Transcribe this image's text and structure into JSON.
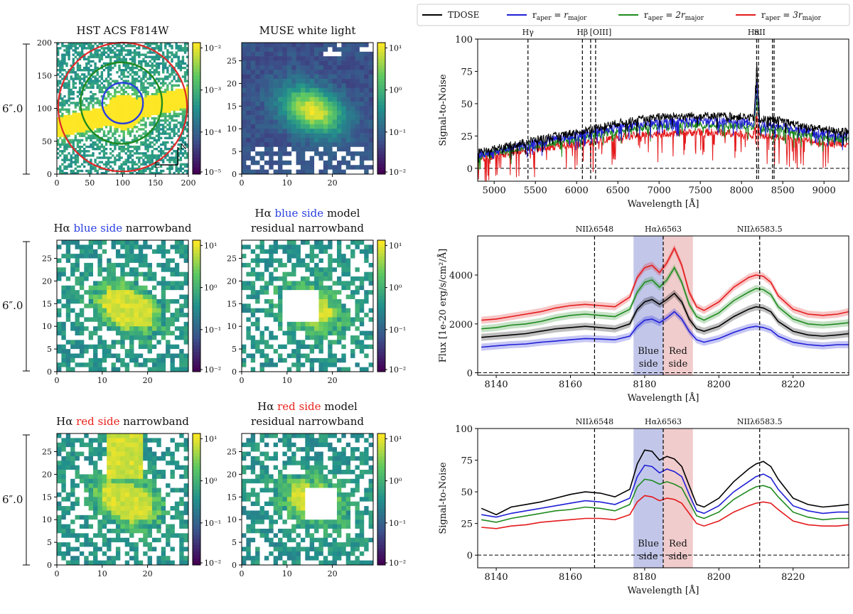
{
  "figure": {
    "scale_label": "6″.0",
    "compass_north": "N",
    "compass_east": "E"
  },
  "legend": {
    "entries": [
      {
        "name": "TDOSE",
        "color": "#000000"
      },
      {
        "name": "r_aper = r_major",
        "label_main": "r",
        "label_sub": "aper",
        "label_rest": " = r",
        "label_rest_sub": "major",
        "color": "#1f1fd6"
      },
      {
        "name": "r_aper = 2r_major",
        "label_main": "r",
        "label_sub": "aper",
        "label_rest": " = 2r",
        "label_rest_sub": "major",
        "color": "#1f8a1f"
      },
      {
        "name": "r_aper = 3r_major",
        "label_main": "r",
        "label_sub": "aper",
        "label_rest": " = 3r",
        "label_rest_sub": "major",
        "color": "#e41a1c"
      }
    ]
  },
  "colors": {
    "viridis": [
      "#440154",
      "#3b528b",
      "#21918c",
      "#5ec962",
      "#fde725"
    ],
    "blue_text": "#2a3fe0",
    "red_text": "#e8251c",
    "blue_band": "#b7bde6",
    "red_band": "#efc3c3"
  },
  "panels": [
    {
      "id": "hst",
      "title": "HST ACS F814W",
      "xticks": [
        "0",
        "50",
        "100",
        "150",
        "200"
      ],
      "yticks": [
        "0",
        "50",
        "100",
        "150",
        "200"
      ],
      "cbar_ticks": [
        "10⁻²",
        "10⁻³",
        "10⁻⁴",
        "10⁻⁵"
      ]
    },
    {
      "id": "muse",
      "title": "MUSE white light",
      "xticks": [
        "0",
        "10",
        "20"
      ],
      "yticks": [
        "0",
        "5",
        "10",
        "15",
        "20",
        "25"
      ],
      "cbar_ticks": [
        "10¹",
        "10⁰",
        "10⁻¹",
        "10⁻²"
      ]
    },
    {
      "id": "blue_nb",
      "title_prefix": "Hα ",
      "title_colored": "blue side",
      "title_suffix": " narrowband",
      "title_color": "blue",
      "xticks": [
        "0",
        "10",
        "20"
      ],
      "yticks": [
        "0",
        "5",
        "10",
        "15",
        "20",
        "25"
      ],
      "cbar_ticks": [
        "10¹",
        "10⁰",
        "10⁻¹",
        "10⁻²"
      ]
    },
    {
      "id": "blue_res",
      "title_prefix": "Hα ",
      "title_colored": "blue side",
      "title_suffix": " model",
      "title_line2": "residual narrowband",
      "title_color": "blue",
      "xticks": [
        "0",
        "10",
        "20"
      ],
      "yticks": [
        "0",
        "5",
        "10",
        "15",
        "20",
        "25"
      ],
      "cbar_ticks": [
        "10¹",
        "10⁰",
        "10⁻¹",
        "10⁻²"
      ]
    },
    {
      "id": "red_nb",
      "title_prefix": "Hα ",
      "title_colored": "red side",
      "title_suffix": " narrowband",
      "title_color": "red",
      "xticks": [
        "0",
        "10",
        "20"
      ],
      "yticks": [
        "0",
        "5",
        "10",
        "15",
        "20",
        "25"
      ],
      "cbar_ticks": [
        "10¹",
        "10⁰",
        "10⁻¹",
        "10⁻²"
      ]
    },
    {
      "id": "red_res",
      "title_prefix": "Hα ",
      "title_colored": "red side",
      "title_suffix": " model",
      "title_line2": "residual narrowband",
      "title_color": "red",
      "xticks": [
        "0",
        "10",
        "20"
      ],
      "yticks": [
        "0",
        "5",
        "10",
        "15",
        "20",
        "25"
      ],
      "cbar_ticks": [
        "10¹",
        "10⁰",
        "10⁻¹",
        "10⁻²"
      ]
    }
  ],
  "chart_data": [
    {
      "type": "line",
      "id": "sn_full",
      "title": "",
      "xlabel": "Wavelength [Å]",
      "ylabel": "Signal-to-Noise",
      "xlim": [
        4800,
        9300
      ],
      "ylim": [
        -10,
        100
      ],
      "xticks": [
        5000,
        5500,
        6000,
        6500,
        7000,
        7500,
        8000,
        8500,
        9000
      ],
      "yticks": [
        0,
        25,
        50,
        75,
        100
      ],
      "lines": [
        {
          "label": "Hγ",
          "x": 5410
        },
        {
          "label": "Hβ",
          "x": 6070
        },
        {
          "label": "[OIII]",
          "x": 6170
        },
        {
          "label": "",
          "x": 6230
        },
        {
          "label": "Hα",
          "x": 8183
        },
        {
          "label": "",
          "x": 8205
        },
        {
          "label": "SII",
          "x": 8375
        },
        {
          "label": "",
          "x": 8395
        }
      ],
      "series": [
        {
          "name": "TDOSE",
          "color": "#000000",
          "x": [
            4800,
            5000,
            5500,
            6000,
            6500,
            7000,
            7500,
            8000,
            8150,
            8185,
            8220,
            8500,
            8700,
            9000,
            9300
          ],
          "values": [
            12,
            15,
            22,
            28,
            35,
            40,
            41,
            40,
            39,
            80,
            38,
            37,
            33,
            30,
            28
          ]
        },
        {
          "name": "r_aper = r_major",
          "color": "#1f1fd6",
          "x": [
            4800,
            5000,
            5500,
            6000,
            6500,
            7000,
            7500,
            8000,
            8150,
            8185,
            8220,
            8500,
            8700,
            9000,
            9300
          ],
          "values": [
            10,
            13,
            20,
            26,
            32,
            36,
            37,
            36,
            35,
            65,
            34,
            33,
            30,
            27,
            25
          ]
        },
        {
          "name": "r_aper = 2r_major",
          "color": "#1f8a1f",
          "x": [
            4800,
            5000,
            5500,
            6000,
            6500,
            7000,
            7500,
            8000,
            8150,
            8185,
            8220,
            8500,
            8700,
            9000,
            9300
          ],
          "values": [
            9,
            12,
            18,
            23,
            29,
            33,
            34,
            33,
            32,
            55,
            31,
            30,
            27,
            24,
            22
          ]
        },
        {
          "name": "r_aper = 3r_major",
          "color": "#e41a1c",
          "x": [
            4800,
            5000,
            5500,
            6000,
            6500,
            7000,
            7500,
            8000,
            8150,
            8185,
            8220,
            8500,
            8700,
            9000,
            9300
          ],
          "values": [
            7,
            10,
            15,
            19,
            24,
            27,
            28,
            27,
            26,
            42,
            25,
            24,
            22,
            20,
            19
          ]
        }
      ]
    },
    {
      "type": "line",
      "id": "flux_zoom",
      "xlabel": "Wavelength [Å]",
      "ylabel": "Flux [1e-20 erg/s/cm²/Å]",
      "xlim": [
        8135,
        8235
      ],
      "ylim": [
        -100,
        5600
      ],
      "xticks": [
        8140,
        8160,
        8180,
        8200,
        8220
      ],
      "yticks": [
        0,
        2000,
        4000
      ],
      "lines": [
        {
          "label": "NIIλ6548",
          "x": 8166.5
        },
        {
          "label": "Hαλ6563",
          "x": 8185
        },
        {
          "label": "NIIλ6583.5",
          "x": 8211
        }
      ],
      "bands": [
        {
          "label_1": "Blue",
          "label_2": "side",
          "x0": 8177,
          "x1": 8185,
          "color": "#b7bde6"
        },
        {
          "label_1": "Red",
          "label_2": "side",
          "x0": 8185,
          "x1": 8193,
          "color": "#efc3c3"
        }
      ],
      "x": [
        8136,
        8140,
        8144,
        8148,
        8152,
        8156,
        8160,
        8164,
        8168,
        8172,
        8176,
        8178,
        8180,
        8182,
        8184,
        8186,
        8188,
        8190,
        8192,
        8194,
        8196,
        8200,
        8204,
        8208,
        8210,
        8212,
        8214,
        8216,
        8220,
        8224,
        8228,
        8232,
        8235
      ],
      "series": [
        {
          "name": "TDOSE",
          "color": "#000000",
          "values": [
            1450,
            1500,
            1550,
            1600,
            1700,
            1800,
            1850,
            1900,
            1850,
            1800,
            2000,
            2600,
            2900,
            3000,
            2800,
            3000,
            3250,
            2900,
            2200,
            1800,
            1700,
            1900,
            2300,
            2600,
            2700,
            2650,
            2500,
            2100,
            1700,
            1550,
            1500,
            1550,
            1600
          ]
        },
        {
          "name": "r_aper = r_major",
          "color": "#1f1fd6",
          "values": [
            1050,
            1100,
            1150,
            1180,
            1250,
            1300,
            1350,
            1400,
            1380,
            1350,
            1500,
            1900,
            2150,
            2200,
            2050,
            2250,
            2500,
            2200,
            1700,
            1350,
            1250,
            1400,
            1650,
            1850,
            1900,
            1850,
            1750,
            1500,
            1250,
            1150,
            1100,
            1150,
            1150
          ]
        },
        {
          "name": "r_aper = 2r_major",
          "color": "#1f8a1f",
          "values": [
            1800,
            1850,
            1950,
            2000,
            2100,
            2250,
            2350,
            2400,
            2350,
            2300,
            2600,
            3300,
            3700,
            3800,
            3500,
            3800,
            4300,
            3700,
            2800,
            2300,
            2150,
            2450,
            2950,
            3300,
            3450,
            3400,
            3200,
            2700,
            2200,
            2000,
            1950,
            2000,
            2050
          ]
        },
        {
          "name": "r_aper = 3r_major",
          "color": "#e41a1c",
          "values": [
            2150,
            2200,
            2300,
            2400,
            2500,
            2650,
            2750,
            2800,
            2750,
            2700,
            3100,
            3900,
            4300,
            4400,
            4100,
            4500,
            5100,
            4400,
            3300,
            2700,
            2550,
            2900,
            3500,
            3900,
            4000,
            3950,
            3700,
            3150,
            2600,
            2400,
            2350,
            2400,
            2500
          ]
        }
      ]
    },
    {
      "type": "line",
      "id": "sn_zoom",
      "xlabel": "Wavelength [Å]",
      "ylabel": "Signal-to-Noise",
      "xlim": [
        8135,
        8235
      ],
      "ylim": [
        -10,
        100
      ],
      "xticks": [
        8140,
        8160,
        8180,
        8200,
        8220
      ],
      "yticks": [
        0,
        25,
        50,
        75,
        100
      ],
      "lines": [
        {
          "label": "NIIλ6548",
          "x": 8166.5
        },
        {
          "label": "Hαλ6563",
          "x": 8185
        },
        {
          "label": "NIIλ6583.5",
          "x": 8211
        }
      ],
      "bands": [
        {
          "label_1": "Blue",
          "label_2": "side",
          "x0": 8177,
          "x1": 8185,
          "color": "#b7bde6"
        },
        {
          "label_1": "Red",
          "label_2": "side",
          "x0": 8185,
          "x1": 8193,
          "color": "#efc3c3"
        }
      ],
      "x": [
        8136,
        8140,
        8144,
        8148,
        8152,
        8156,
        8160,
        8164,
        8168,
        8172,
        8176,
        8178,
        8180,
        8182,
        8184,
        8186,
        8188,
        8190,
        8192,
        8194,
        8196,
        8200,
        8204,
        8208,
        8210,
        8212,
        8214,
        8216,
        8220,
        8224,
        8228,
        8232,
        8235
      ],
      "series": [
        {
          "name": "TDOSE",
          "color": "#000000",
          "values": [
            37,
            32,
            38,
            40,
            42,
            45,
            48,
            50,
            49,
            46,
            52,
            72,
            83,
            82,
            75,
            78,
            76,
            70,
            55,
            40,
            38,
            45,
            58,
            68,
            72,
            74,
            70,
            60,
            45,
            40,
            38,
            39,
            40
          ]
        },
        {
          "name": "r_aper = r_major",
          "color": "#1f1fd6",
          "values": [
            32,
            30,
            33,
            35,
            37,
            39,
            41,
            43,
            42,
            40,
            45,
            62,
            71,
            70,
            65,
            68,
            66,
            62,
            48,
            35,
            33,
            39,
            50,
            58,
            62,
            64,
            61,
            52,
            39,
            35,
            33,
            34,
            34
          ]
        },
        {
          "name": "r_aper = 2r_major",
          "color": "#1f8a1f",
          "values": [
            28,
            26,
            29,
            31,
            33,
            35,
            36,
            38,
            37,
            35,
            40,
            54,
            60,
            59,
            56,
            58,
            56,
            53,
            42,
            31,
            29,
            34,
            44,
            51,
            54,
            55,
            53,
            46,
            34,
            30,
            28,
            29,
            29
          ]
        },
        {
          "name": "r_aper = 3r_major",
          "color": "#e41a1c",
          "values": [
            22,
            21,
            23,
            24,
            26,
            27,
            28,
            29,
            29,
            28,
            32,
            42,
            47,
            46,
            43,
            45,
            44,
            41,
            33,
            25,
            23,
            27,
            34,
            39,
            41,
            42,
            41,
            36,
            27,
            24,
            23,
            23,
            24
          ]
        }
      ]
    }
  ]
}
